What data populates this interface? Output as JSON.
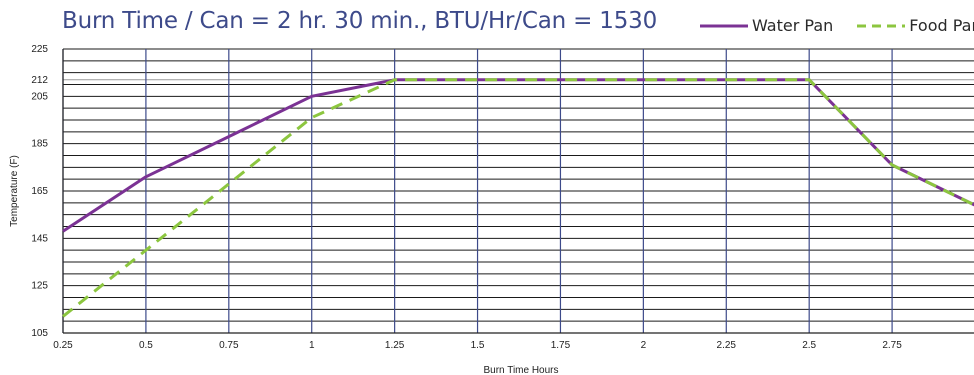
{
  "chart_data": {
    "type": "line",
    "title": "Burn Time / Can = 2 hr. 30 min., BTU/Hr/Can = 1530",
    "xlabel": "Burn Time Hours",
    "ylabel": "Temperature (F)",
    "x": [
      0.25,
      0.5,
      0.75,
      1,
      1.25,
      1.5,
      1.75,
      2,
      2.25,
      2.5,
      2.75,
      3
    ],
    "x_tick_labels": [
      "0.25",
      "0.5",
      "0.75",
      "1",
      "1.25",
      "1.5",
      "1.75",
      "2",
      "2.25",
      "2.5",
      "2.75"
    ],
    "y_tick_labels": [
      "105",
      "125",
      "145",
      "165",
      "185",
      "205",
      "212",
      "225"
    ],
    "y_ticks": [
      105,
      125,
      145,
      165,
      185,
      205,
      212,
      225
    ],
    "ylim": [
      105,
      225
    ],
    "xlim": [
      0.25,
      3.0
    ],
    "grid": true,
    "legend_position": "top-right",
    "series": [
      {
        "name": "Water Pan",
        "color": "#7b3294",
        "style": "solid",
        "points": [
          [
            0.25,
            148
          ],
          [
            0.5,
            171
          ],
          [
            0.75,
            188
          ],
          [
            1,
            205
          ],
          [
            1.25,
            212
          ],
          [
            1.5,
            212
          ],
          [
            1.75,
            212
          ],
          [
            2,
            212
          ],
          [
            2.25,
            212
          ],
          [
            2.5,
            212
          ],
          [
            2.75,
            176
          ],
          [
            3.0,
            159
          ]
        ]
      },
      {
        "name": "Food Pan",
        "color": "#8cc63f",
        "style": "dashed",
        "points": [
          [
            0.25,
            112
          ],
          [
            0.5,
            140
          ],
          [
            0.75,
            168
          ],
          [
            1,
            196
          ],
          [
            1.25,
            212
          ],
          [
            1.5,
            212
          ],
          [
            1.75,
            212
          ],
          [
            2,
            212
          ],
          [
            2.25,
            212
          ],
          [
            2.5,
            212
          ],
          [
            2.75,
            176
          ],
          [
            3.0,
            159
          ]
        ]
      }
    ]
  }
}
